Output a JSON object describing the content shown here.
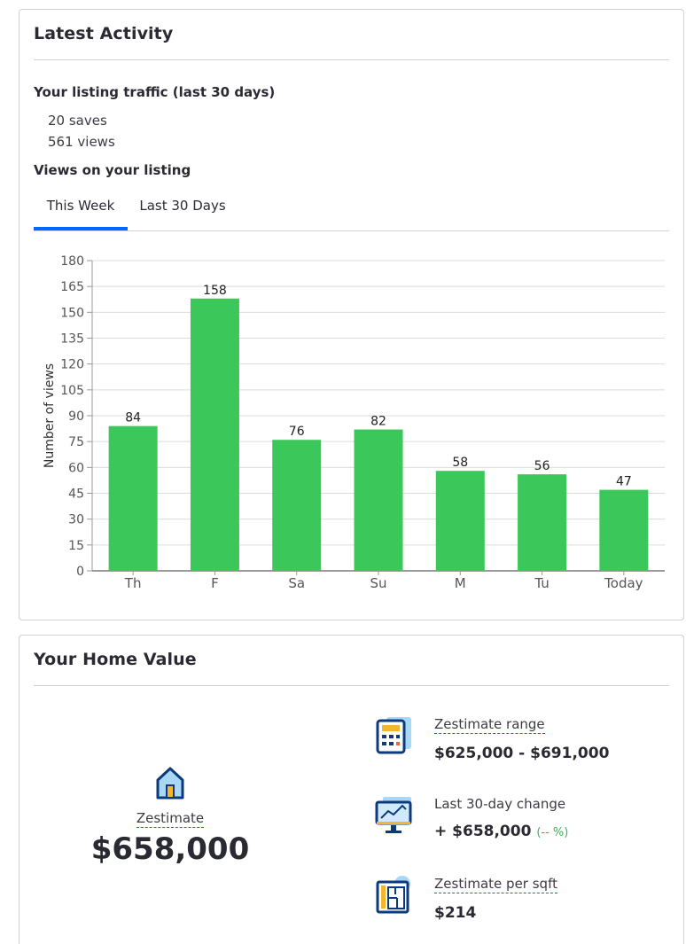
{
  "activity": {
    "title": "Latest Activity",
    "traffic_heading": "Your listing traffic (last 30 days)",
    "saves": "20 saves",
    "views": "561 views",
    "views_heading": "Views on your listing",
    "tabs": [
      {
        "label": "This Week",
        "active": true
      },
      {
        "label": "Last 30 Days",
        "active": false
      }
    ]
  },
  "chart_data": {
    "type": "bar",
    "categories": [
      "Th",
      "F",
      "Sa",
      "Su",
      "M",
      "Tu",
      "Today"
    ],
    "values": [
      84,
      158,
      76,
      82,
      58,
      56,
      47
    ],
    "ylabel": "Number of views",
    "xlabel": "",
    "ylim": [
      0,
      180
    ],
    "yticks": [
      0,
      15,
      30,
      45,
      60,
      75,
      90,
      105,
      120,
      135,
      150,
      165,
      180
    ],
    "grid": true,
    "bar_color": "#3cc75a",
    "data_labels": true
  },
  "home_value": {
    "title": "Your Home Value",
    "zestimate_label": "Zestimate",
    "zestimate_value": "$658,000",
    "range_label": "Zestimate range",
    "range_value": "$625,000 - $691,000",
    "change_label": "Last 30-day change",
    "change_value": "+ $658,000",
    "change_pct": "(-- %)",
    "sqft_label": "Zestimate per sqft",
    "sqft_value": "$214",
    "icons": [
      "house-icon",
      "calculator-icon",
      "monitor-chart-icon",
      "floorplan-icon"
    ]
  },
  "colors": {
    "accent": "#006aff",
    "positive": "#3fb34f",
    "bar": "#3cc75a",
    "icon_navy": "#0d3a7a",
    "icon_light": "#a8d8f5"
  }
}
